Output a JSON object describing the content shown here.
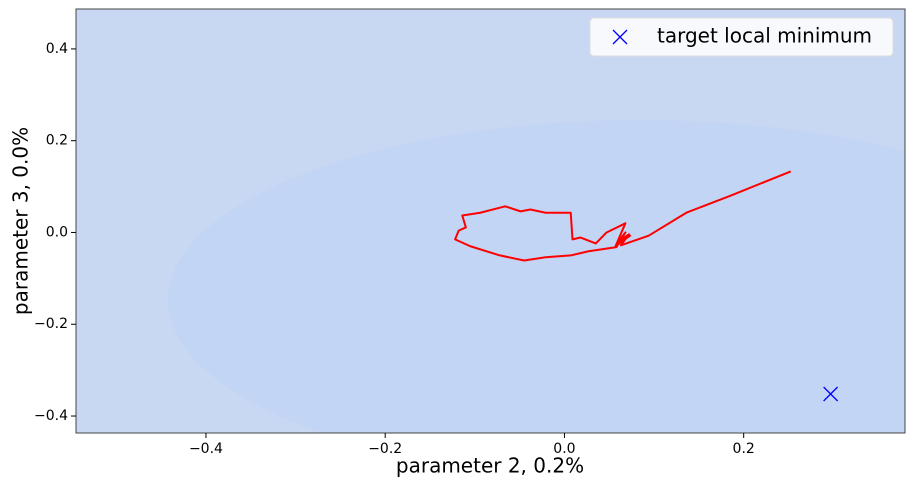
{
  "chart_data": {
    "type": "line",
    "xlabel": "parameter 2, 0.2%",
    "ylabel": "parameter 3, 0.0%",
    "xlim": [
      -0.545,
      0.38
    ],
    "ylim": [
      -0.437,
      0.487
    ],
    "xticks": [
      {
        "value": -0.4,
        "label": "−0.4"
      },
      {
        "value": -0.2,
        "label": "−0.2"
      },
      {
        "value": 0.0,
        "label": "0.0"
      },
      0.2
    ],
    "yticks": [
      {
        "value": -0.4,
        "label": "−0.4"
      },
      {
        "value": -0.2,
        "label": "−0.2"
      },
      {
        "value": 0.0,
        "label": "0.0"
      },
      0.2,
      0.4
    ],
    "legend": "upper right",
    "series": [
      {
        "color": "#ff0000",
        "x": [
          0.2525,
          0.185,
          0.136,
          0.094,
          0.063,
          0.072,
          0.06,
          0.068,
          0.058,
          0.027,
          0.007,
          -0.021,
          -0.045,
          -0.072,
          -0.105,
          -0.122,
          -0.118,
          -0.11,
          -0.114,
          -0.094,
          -0.066,
          -0.049,
          -0.038,
          -0.021,
          0.007,
          0.009,
          0.018,
          0.035,
          0.047,
          0.068,
          0.057,
          0.074
        ],
        "y": [
          0.133,
          0.08,
          0.043,
          -0.007,
          -0.028,
          -0.004,
          -0.02,
          0.0,
          -0.032,
          -0.041,
          -0.05,
          -0.054,
          -0.061,
          -0.05,
          -0.03,
          -0.015,
          0.004,
          0.011,
          0.037,
          0.043,
          0.057,
          0.046,
          0.05,
          0.043,
          0.043,
          -0.015,
          -0.011,
          -0.024,
          0.0,
          0.02,
          -0.03,
          -0.006
        ]
      },
      {
        "name": "target local minimum",
        "type": "scatter",
        "marker": "x",
        "color": "#0000ff",
        "x": [
          0.297
        ],
        "y": [
          -0.352
        ]
      }
    ]
  }
}
